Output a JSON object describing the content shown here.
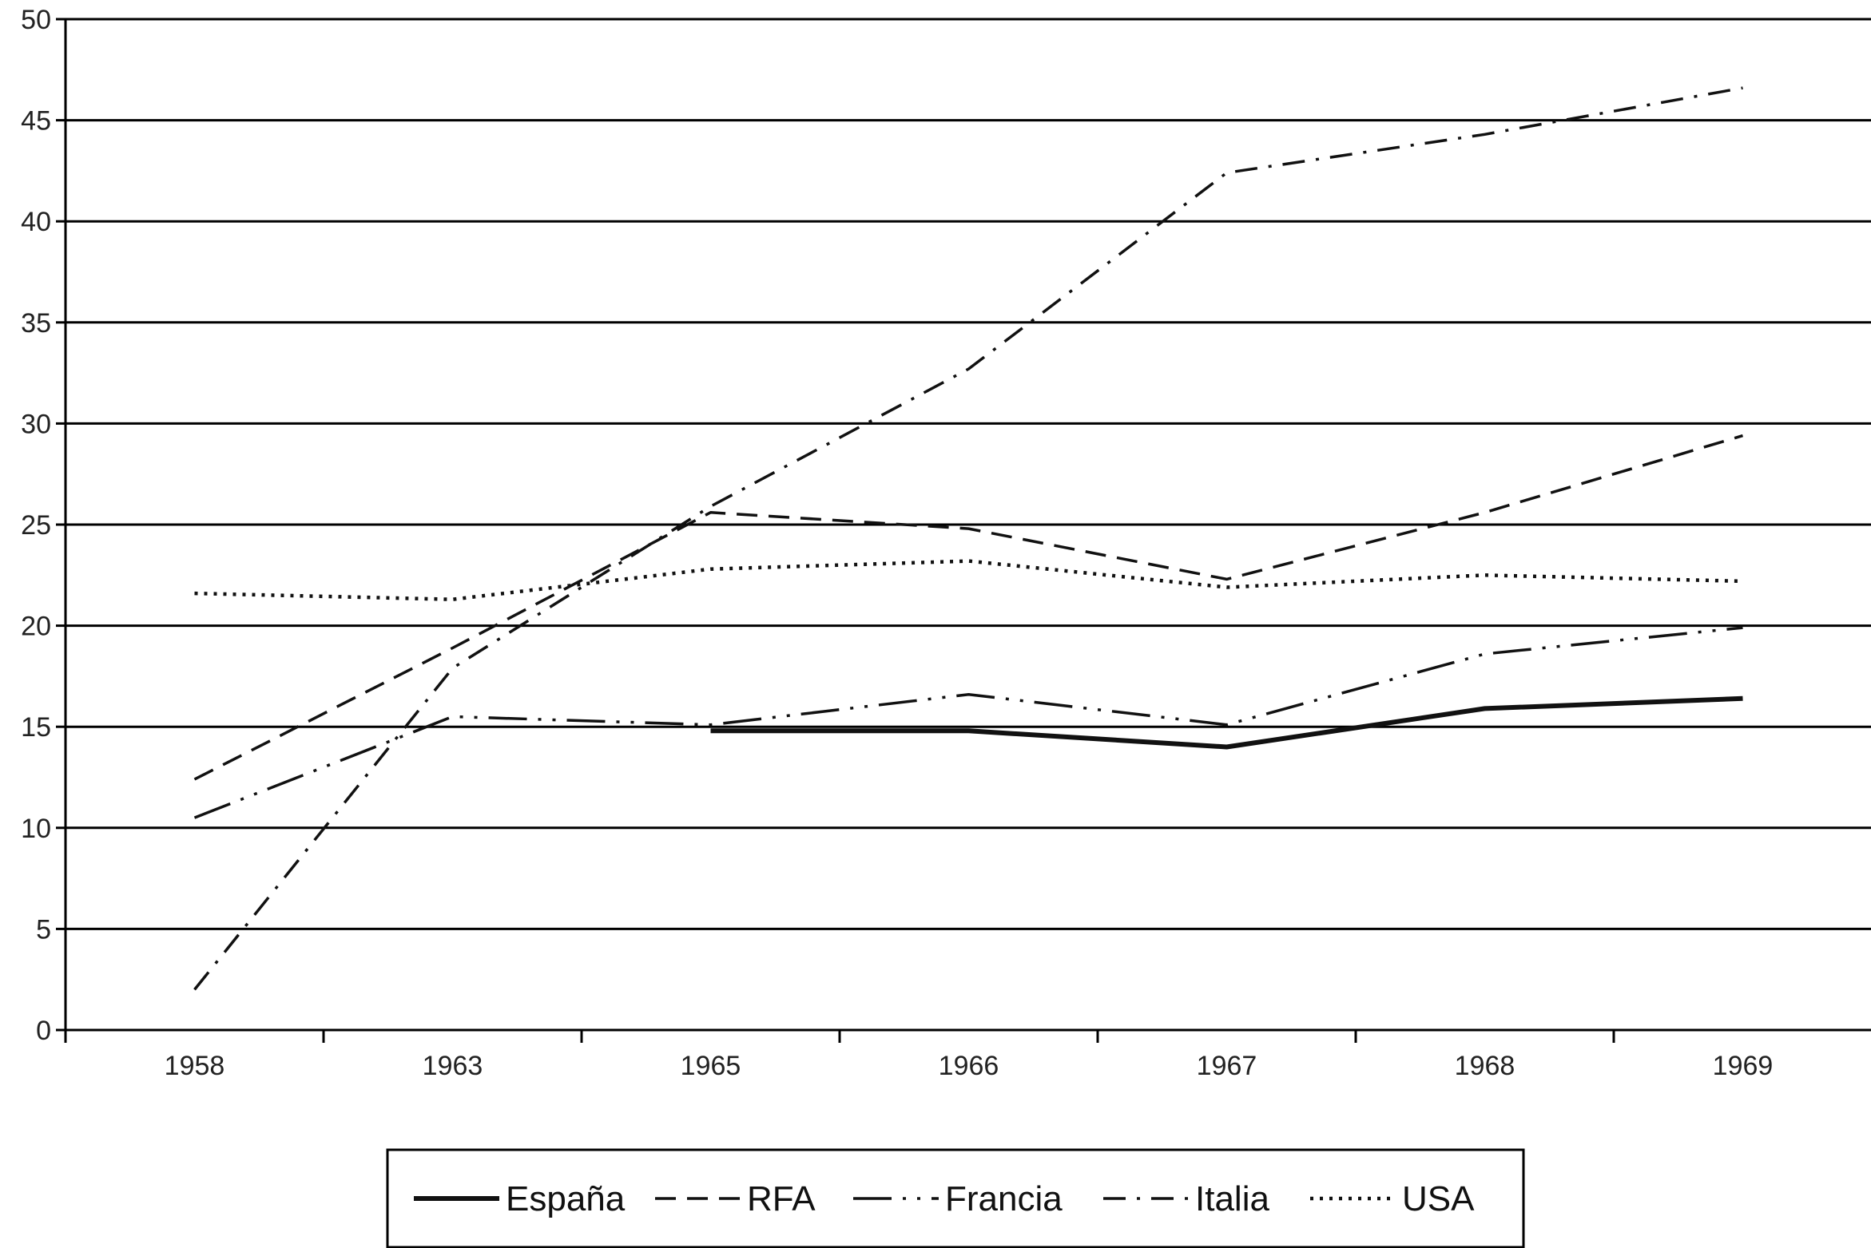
{
  "chart_data": {
    "type": "line",
    "categories": [
      "1958",
      "1963",
      "1965",
      "1966",
      "1967",
      "1968",
      "1969"
    ],
    "ylim": [
      0,
      50
    ],
    "yticks": [
      0,
      5,
      10,
      15,
      20,
      25,
      30,
      35,
      40,
      45,
      50
    ],
    "grid": true,
    "legend_position": "bottom",
    "series": [
      {
        "name": "España",
        "values": [
          null,
          null,
          14.8,
          14.8,
          14.0,
          15.9,
          16.4
        ],
        "dash": "solid"
      },
      {
        "name": "RFA",
        "values": [
          12.4,
          18.9,
          25.6,
          24.8,
          22.3,
          25.6,
          29.4
        ],
        "dash": "dashed"
      },
      {
        "name": "Francia",
        "values": [
          10.5,
          15.5,
          15.1,
          16.6,
          15.1,
          18.6,
          19.9
        ],
        "dash": "longdashdotdot"
      },
      {
        "name": "Italia",
        "values": [
          2.0,
          17.9,
          25.9,
          32.7,
          42.4,
          44.3,
          46.6
        ],
        "dash": "dashdot"
      },
      {
        "name": "USA",
        "values": [
          21.6,
          21.3,
          22.8,
          23.2,
          21.9,
          22.5,
          22.2
        ],
        "dash": "dotted"
      }
    ]
  }
}
